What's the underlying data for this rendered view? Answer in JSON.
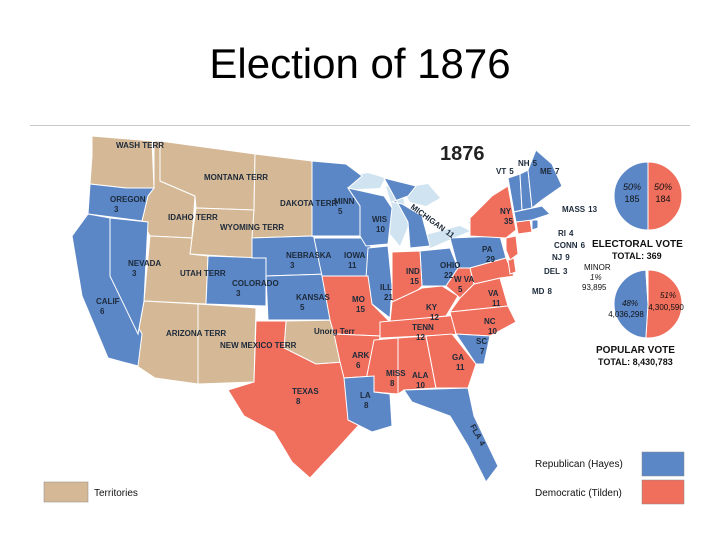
{
  "slide_title": "Election of 1876",
  "map_year": "1876",
  "colors": {
    "republican": "#5b87c7",
    "democratic": "#ef6e5c",
    "territory": "#d5b895",
    "water": "#cfe3f0",
    "border": "#ffffff"
  },
  "states": [
    {
      "id": "wash",
      "name": "WASH TERR",
      "value": "",
      "party": "territory"
    },
    {
      "id": "oregon",
      "name": "OREGON",
      "value": "3",
      "party": "republican"
    },
    {
      "id": "calif",
      "name": "CALIF",
      "value": "6",
      "party": "republican"
    },
    {
      "id": "nevada",
      "name": "NEVADA",
      "value": "3",
      "party": "republican"
    },
    {
      "id": "idaho",
      "name": "IDAHO TERR",
      "value": "",
      "party": "territory"
    },
    {
      "id": "montana",
      "name": "MONTANA TERR",
      "value": "",
      "party": "territory"
    },
    {
      "id": "wyoming",
      "name": "WYOMING TERR",
      "value": "",
      "party": "territory"
    },
    {
      "id": "utah",
      "name": "UTAH TERR",
      "value": "",
      "party": "territory"
    },
    {
      "id": "arizona",
      "name": "ARIZONA TERR",
      "value": "",
      "party": "territory"
    },
    {
      "id": "newmexico",
      "name": "NEW MEXICO TERR",
      "value": "",
      "party": "territory"
    },
    {
      "id": "colorado",
      "name": "COLORADO",
      "value": "3",
      "party": "republican"
    },
    {
      "id": "dakota",
      "name": "DAKOTA TERR",
      "value": "",
      "party": "territory"
    },
    {
      "id": "nebraska",
      "name": "NEBRASKA",
      "value": "3",
      "party": "republican"
    },
    {
      "id": "kansas",
      "name": "KANSAS",
      "value": "5",
      "party": "republican"
    },
    {
      "id": "unorg",
      "name": "Unorg Terr",
      "value": "",
      "party": "territory"
    },
    {
      "id": "texas",
      "name": "TEXAS",
      "value": "8",
      "party": "democratic"
    },
    {
      "id": "minn",
      "name": "MINN",
      "value": "5",
      "party": "republican"
    },
    {
      "id": "iowa",
      "name": "IOWA",
      "value": "11",
      "party": "republican"
    },
    {
      "id": "mo",
      "name": "MO",
      "value": "15",
      "party": "democratic"
    },
    {
      "id": "ark",
      "name": "ARK",
      "value": "6",
      "party": "democratic"
    },
    {
      "id": "la",
      "name": "LA",
      "value": "8",
      "party": "republican"
    },
    {
      "id": "wis",
      "name": "WIS",
      "value": "10",
      "party": "republican"
    },
    {
      "id": "ill",
      "name": "ILL",
      "value": "21",
      "party": "republican"
    },
    {
      "id": "mich",
      "name": "MICHIGAN",
      "value": "11",
      "party": "republican"
    },
    {
      "id": "ind",
      "name": "IND",
      "value": "15",
      "party": "democratic"
    },
    {
      "id": "ohio",
      "name": "OHIO",
      "value": "22",
      "party": "republican"
    },
    {
      "id": "ky",
      "name": "KY",
      "value": "12",
      "party": "democratic"
    },
    {
      "id": "tenn",
      "name": "TENN",
      "value": "12",
      "party": "democratic"
    },
    {
      "id": "miss",
      "name": "MISS",
      "value": "8",
      "party": "democratic"
    },
    {
      "id": "ala",
      "name": "ALA",
      "value": "10",
      "party": "democratic"
    },
    {
      "id": "ga",
      "name": "GA",
      "value": "11",
      "party": "democratic"
    },
    {
      "id": "fla",
      "name": "FLA",
      "value": "4",
      "party": "republican"
    },
    {
      "id": "sc",
      "name": "SC",
      "value": "7",
      "party": "republican"
    },
    {
      "id": "nc",
      "name": "NC",
      "value": "10",
      "party": "democratic"
    },
    {
      "id": "va",
      "name": "VA",
      "value": "11",
      "party": "democratic"
    },
    {
      "id": "wva",
      "name": "W VA",
      "value": "5",
      "party": "democratic"
    },
    {
      "id": "pa",
      "name": "PA",
      "value": "29",
      "party": "republican"
    },
    {
      "id": "ny",
      "name": "NY",
      "value": "35",
      "party": "democratic"
    },
    {
      "id": "nj",
      "name": "NJ",
      "value": "9",
      "party": "democratic"
    },
    {
      "id": "del",
      "name": "DEL",
      "value": "3",
      "party": "democratic"
    },
    {
      "id": "md",
      "name": "MD",
      "value": "8",
      "party": "democratic"
    },
    {
      "id": "conn",
      "name": "CONN",
      "value": "6",
      "party": "democratic"
    },
    {
      "id": "ri",
      "name": "RI",
      "value": "4",
      "party": "republican"
    },
    {
      "id": "mass",
      "name": "MASS",
      "value": "13",
      "party": "republican"
    },
    {
      "id": "vt",
      "name": "VT",
      "value": "5",
      "party": "republican"
    },
    {
      "id": "nh",
      "name": "NH",
      "value": "5",
      "party": "republican"
    },
    {
      "id": "me",
      "name": "ME",
      "value": "7",
      "party": "republican"
    }
  ],
  "electoral_pie": {
    "slices": [
      {
        "party": "republican",
        "percent": 50,
        "value": 185
      },
      {
        "party": "democratic",
        "percent": 50,
        "value": 184
      }
    ],
    "labels": {
      "rep_pct": "50%",
      "rep_val": "185",
      "dem_pct": "50%",
      "dem_val": "184"
    },
    "title": "ELECTORAL VOTE",
    "total": "TOTAL: 369"
  },
  "popular_pie": {
    "slices": [
      {
        "party": "democratic",
        "percent": 51
      },
      {
        "party": "republican",
        "percent": 48
      },
      {
        "party": "minor",
        "percent": 1
      }
    ],
    "labels": {
      "minor_name": "MINOR",
      "minor_pct": "1%",
      "minor_val": "93,895",
      "rep_pct": "48%",
      "rep_val": "4,036,298",
      "dem_pct": "51%",
      "dem_val": "4,300,590"
    },
    "title": "POPULAR VOTE",
    "total": "TOTAL: 8,430,783"
  },
  "legend": {
    "territories": "Territories",
    "republican": "Republican (Hayes)",
    "democratic": "Democratic (Tilden)"
  }
}
